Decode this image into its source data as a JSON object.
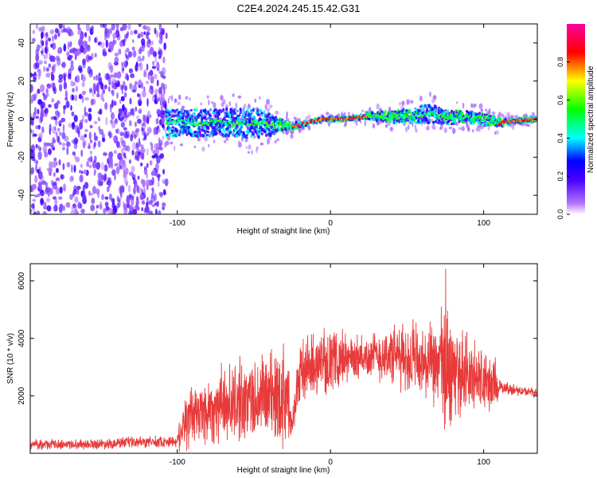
{
  "title": "C2E4.2024.245.15.42.G31",
  "colors": {
    "snr_line": "#e83a3a",
    "frame": "#000000"
  },
  "chart_data": [
    {
      "type": "heatmap",
      "xlabel": "Height of straight line (km)",
      "ylabel": "Frequency (Hz)",
      "xlim": [
        -196,
        135
      ],
      "ylim": [
        -50,
        50
      ],
      "xticks": [
        -100,
        0,
        100
      ],
      "yticks": [
        40,
        20,
        0,
        -20,
        -40
      ],
      "colorbar": {
        "label": "Normalized spectral amplitude",
        "range": [
          0,
          1
        ],
        "ticks": [
          "0.0",
          "0.2",
          "0.4",
          "0.6",
          "0.8"
        ],
        "colormap": [
          "#ffffff",
          "#8a2be2",
          "#0000ff",
          "#00ffff",
          "#00ff00",
          "#ffff00",
          "#ff0000",
          "#ff00ff"
        ]
      },
      "noise_region_x": [
        -196,
        -107
      ],
      "signal_track": {
        "x": [
          -107,
          -90,
          -70,
          -50,
          -40,
          -35,
          -25,
          -15,
          -5,
          0,
          10,
          20,
          25,
          40,
          55,
          65,
          75,
          90,
          105,
          110,
          120,
          135
        ],
        "freq": [
          -2,
          -2,
          -2,
          -2,
          -3,
          -3,
          -4,
          -2,
          0,
          0,
          0,
          1,
          2,
          1,
          2,
          3,
          1,
          1,
          -1,
          -2,
          -1,
          0
        ],
        "spread": [
          7,
          7,
          7,
          8,
          6,
          4,
          2,
          1,
          1,
          1,
          1,
          1,
          2,
          3,
          4,
          5,
          4,
          3,
          3,
          2,
          1,
          1
        ]
      }
    },
    {
      "type": "line",
      "xlabel": "Height of straight line (km)",
      "ylabel": "SNR (10 * v/v)",
      "xlim": [
        -196,
        135
      ],
      "ylim": [
        0,
        6600
      ],
      "xticks": [
        -100,
        0,
        100
      ],
      "yticks": [
        2000,
        4000,
        6000
      ],
      "ytick_labels": [
        "2000",
        "4000",
        "6000"
      ],
      "envelope": {
        "x": [
          -196,
          -150,
          -100,
          -98,
          -90,
          -80,
          -70,
          -60,
          -50,
          -40,
          -30,
          -25,
          -20,
          -10,
          0,
          10,
          20,
          30,
          40,
          50,
          60,
          70,
          75,
          80,
          90,
          100,
          108,
          110,
          120,
          135
        ],
        "base": [
          300,
          330,
          420,
          900,
          1300,
          1500,
          1700,
          1800,
          1900,
          2000,
          2100,
          1200,
          2800,
          3100,
          3200,
          3300,
          3300,
          3400,
          3400,
          3300,
          3100,
          3000,
          2900,
          2800,
          2700,
          2500,
          2300,
          2300,
          2200,
          2100
        ],
        "amp": [
          180,
          200,
          220,
          1100,
          1300,
          1400,
          1500,
          1600,
          1700,
          1800,
          2200,
          600,
          1400,
          1200,
          1200,
          1000,
          800,
          1000,
          1200,
          1400,
          1500,
          1600,
          3600,
          1600,
          1500,
          1400,
          1000,
          250,
          200,
          180
        ]
      }
    }
  ]
}
